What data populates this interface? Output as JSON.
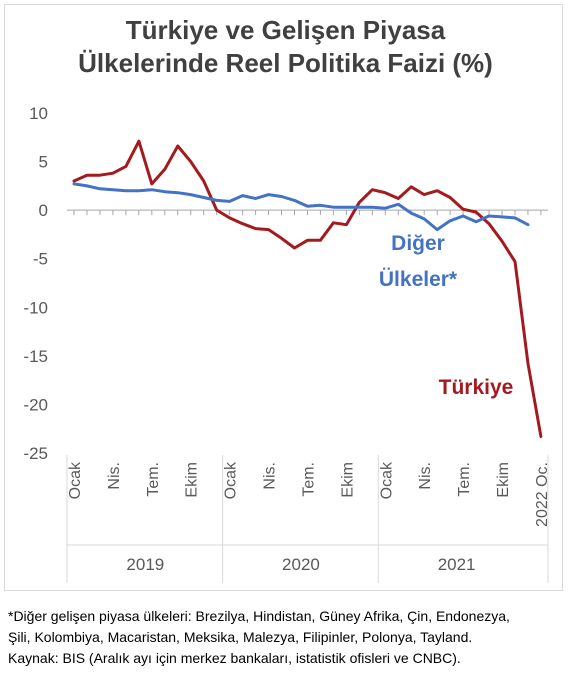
{
  "chart_data": {
    "type": "line",
    "title_line1": "Türkiye ve Gelişen Piyasa",
    "title_line2": "Ülkelerinde Reel Politika Faizi (%)",
    "ylim": [
      -25,
      10
    ],
    "yticks": [
      10,
      5,
      0,
      -5,
      -10,
      -15,
      -20,
      -25
    ],
    "x_count": 37,
    "xtick_labels": [
      {
        "i": 0,
        "label": "Ocak"
      },
      {
        "i": 3,
        "label": "Nis."
      },
      {
        "i": 6,
        "label": "Tem."
      },
      {
        "i": 9,
        "label": "Ekim"
      },
      {
        "i": 12,
        "label": "Ocak"
      },
      {
        "i": 15,
        "label": "Nis."
      },
      {
        "i": 18,
        "label": "Tem."
      },
      {
        "i": 21,
        "label": "Ekim"
      },
      {
        "i": 24,
        "label": "Ocak"
      },
      {
        "i": 27,
        "label": "Nis."
      },
      {
        "i": 30,
        "label": "Tem."
      },
      {
        "i": 33,
        "label": "Ekim"
      },
      {
        "i": 36,
        "label": "2022 Oc."
      }
    ],
    "years": [
      {
        "label": "2019",
        "start": 0,
        "end": 12
      },
      {
        "label": "2020",
        "start": 12,
        "end": 24
      },
      {
        "label": "2021",
        "start": 24,
        "end": 36
      }
    ],
    "grid": false,
    "series": [
      {
        "name": "Türkiye",
        "color": "#a31a1f",
        "values": [
          3.0,
          3.6,
          3.6,
          3.8,
          4.5,
          7.1,
          2.7,
          4.2,
          6.6,
          5.0,
          3.0,
          0.0,
          -0.8,
          -1.4,
          -1.9,
          -2.0,
          -2.9,
          -3.9,
          -3.1,
          -3.1,
          -1.3,
          -1.5,
          0.8,
          2.1,
          1.8,
          1.2,
          2.4,
          1.6,
          2.0,
          1.3,
          0.1,
          -0.2,
          -1.4,
          -3.2,
          -5.3,
          -15.8,
          -23.3
        ]
      },
      {
        "name": "Diğer Ülkeler*",
        "color": "#4472c4",
        "values": [
          2.7,
          2.5,
          2.2,
          2.1,
          2.0,
          2.0,
          2.1,
          1.9,
          1.8,
          1.6,
          1.3,
          1.0,
          0.9,
          1.5,
          1.2,
          1.6,
          1.4,
          1.0,
          0.4,
          0.5,
          0.3,
          0.3,
          0.3,
          0.3,
          0.2,
          0.6,
          -0.3,
          -0.9,
          -2.0,
          -1.1,
          -0.6,
          -1.2,
          -0.6,
          -0.7,
          -0.8,
          -1.5,
          null
        ]
      }
    ],
    "series_labels": [
      "Diğer",
      "Ülkeler*",
      "Türkiye"
    ]
  },
  "footnote": {
    "line1": "*Diğer gelişen piyasa ülkeleri: Brezilya, Hindistan, Güney Afrika, Çin, Endonezya,",
    "line2": "Şili, Kolombiya, Macaristan, Meksika, Malezya, Filipinler, Polonya, Tayland.",
    "line3": "Kaynak: BIS (Aralık ayı için merkez bankaları, istatistik ofisleri ve CNBC)."
  }
}
